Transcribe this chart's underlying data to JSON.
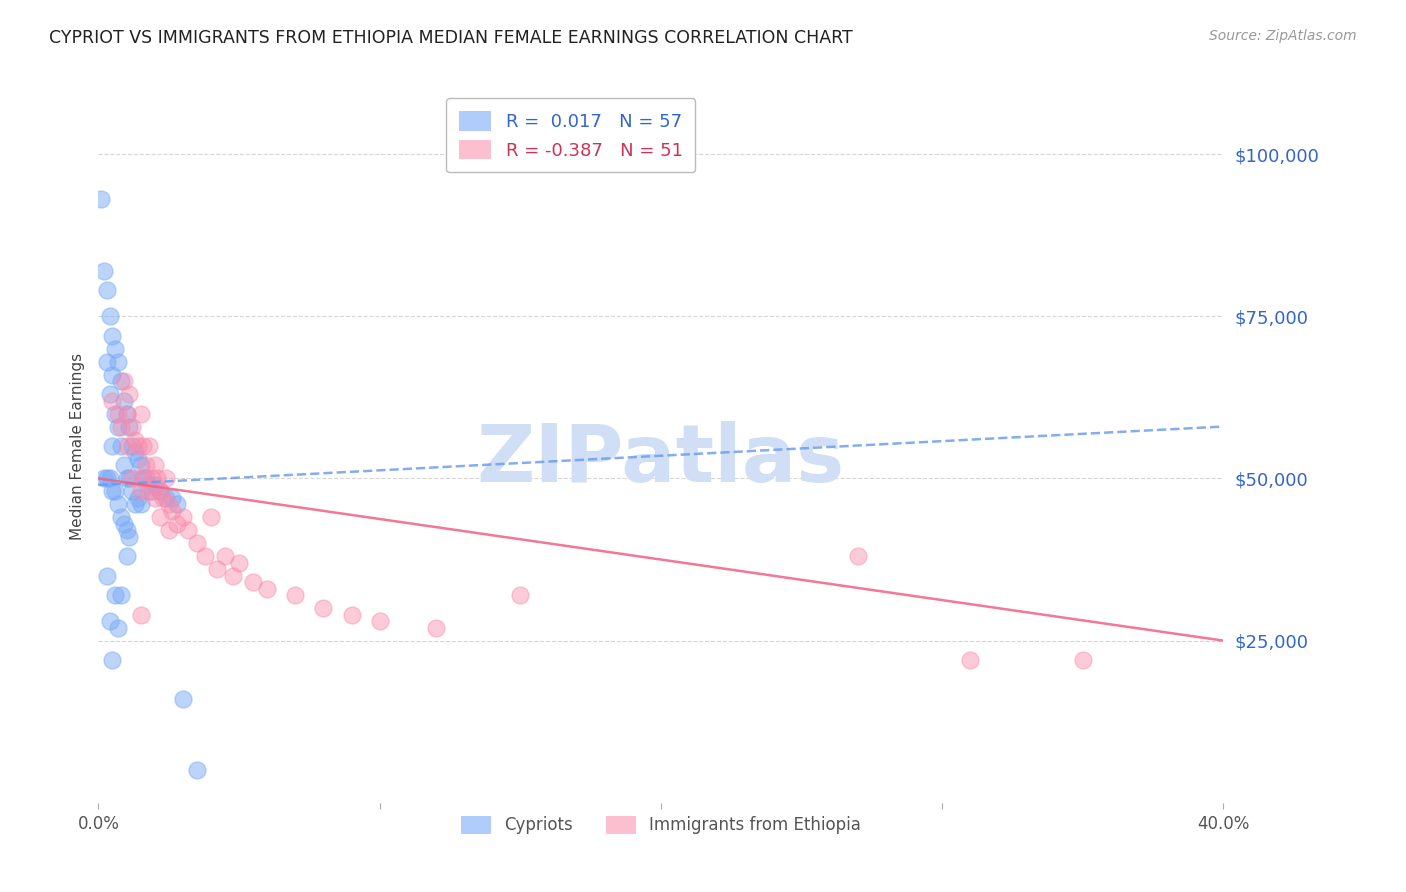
{
  "title": "CYPRIOT VS IMMIGRANTS FROM ETHIOPIA MEDIAN FEMALE EARNINGS CORRELATION CHART",
  "source": "Source: ZipAtlas.com",
  "ylabel": "Median Female Earnings",
  "ytick_labels": [
    "$25,000",
    "$50,000",
    "$75,000",
    "$100,000"
  ],
  "ytick_values": [
    25000,
    50000,
    75000,
    100000
  ],
  "xlim": [
    0.0,
    0.4
  ],
  "ylim": [
    0,
    110000
  ],
  "legend_blue_r": "0.017",
  "legend_blue_n": "57",
  "legend_pink_r": "-0.387",
  "legend_pink_n": "51",
  "blue_color": "#7aabf7",
  "pink_color": "#f98baa",
  "blue_line_color": "#6699ee",
  "pink_line_color": "#f06080",
  "watermark": "ZIPatlas",
  "watermark_color": "#d0dff5",
  "blue_scatter_x": [
    0.001,
    0.002,
    0.002,
    0.003,
    0.003,
    0.003,
    0.004,
    0.004,
    0.004,
    0.005,
    0.005,
    0.005,
    0.005,
    0.006,
    0.006,
    0.006,
    0.007,
    0.007,
    0.007,
    0.008,
    0.008,
    0.008,
    0.009,
    0.009,
    0.009,
    0.01,
    0.01,
    0.01,
    0.011,
    0.011,
    0.011,
    0.012,
    0.012,
    0.013,
    0.013,
    0.014,
    0.014,
    0.015,
    0.015,
    0.016,
    0.017,
    0.018,
    0.019,
    0.02,
    0.022,
    0.024,
    0.026,
    0.028,
    0.03,
    0.035,
    0.003,
    0.004,
    0.005,
    0.006,
    0.007,
    0.008,
    0.01
  ],
  "blue_scatter_y": [
    93000,
    82000,
    50000,
    79000,
    68000,
    50000,
    75000,
    63000,
    50000,
    72000,
    66000,
    55000,
    48000,
    70000,
    60000,
    48000,
    68000,
    58000,
    46000,
    65000,
    55000,
    44000,
    62000,
    52000,
    43000,
    60000,
    50000,
    42000,
    58000,
    50000,
    41000,
    55000,
    48000,
    54000,
    46000,
    53000,
    47000,
    52000,
    46000,
    50000,
    50000,
    49000,
    48000,
    49000,
    48000,
    47000,
    47000,
    46000,
    16000,
    5000,
    35000,
    28000,
    22000,
    32000,
    27000,
    32000,
    38000
  ],
  "pink_scatter_x": [
    0.005,
    0.007,
    0.008,
    0.009,
    0.01,
    0.01,
    0.011,
    0.012,
    0.012,
    0.013,
    0.014,
    0.015,
    0.015,
    0.016,
    0.016,
    0.017,
    0.018,
    0.018,
    0.019,
    0.02,
    0.02,
    0.021,
    0.022,
    0.022,
    0.023,
    0.024,
    0.025,
    0.025,
    0.026,
    0.028,
    0.03,
    0.032,
    0.035,
    0.038,
    0.04,
    0.042,
    0.045,
    0.048,
    0.05,
    0.055,
    0.06,
    0.07,
    0.08,
    0.09,
    0.1,
    0.12,
    0.15,
    0.27,
    0.31,
    0.35,
    0.015
  ],
  "pink_scatter_y": [
    62000,
    60000,
    58000,
    65000,
    60000,
    55000,
    63000,
    58000,
    50000,
    56000,
    55000,
    60000,
    48000,
    55000,
    50000,
    52000,
    55000,
    48000,
    50000,
    52000,
    47000,
    50000,
    48000,
    44000,
    47000,
    50000,
    46000,
    42000,
    45000,
    43000,
    44000,
    42000,
    40000,
    38000,
    44000,
    36000,
    38000,
    35000,
    37000,
    34000,
    33000,
    32000,
    30000,
    29000,
    28000,
    27000,
    32000,
    38000,
    22000,
    22000,
    29000
  ]
}
